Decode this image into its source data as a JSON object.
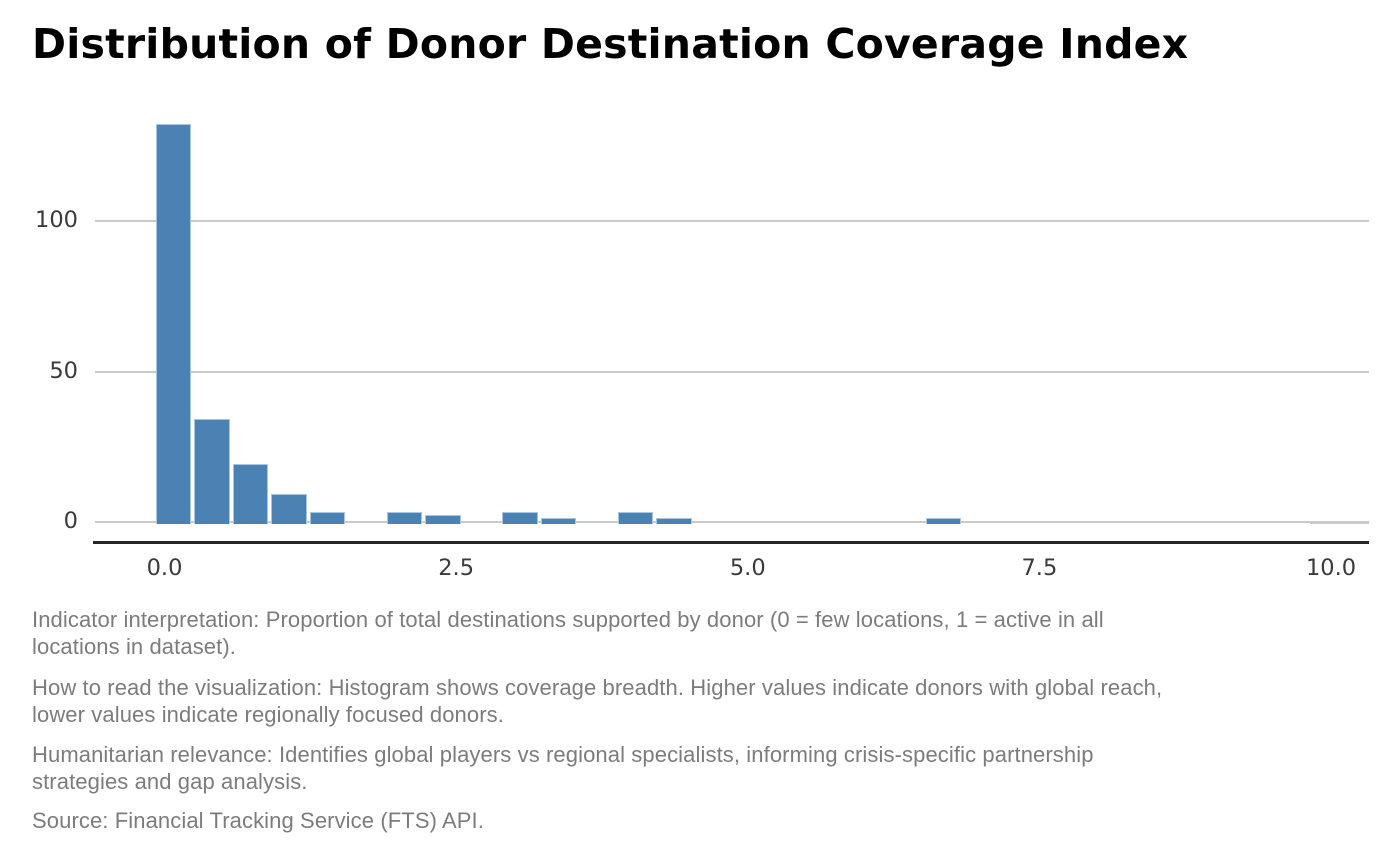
{
  "title": "Distribution of Donor Destination Coverage Index",
  "chart_data": {
    "type": "bar",
    "subtype": "histogram",
    "title": "Distribution of Donor Destination Coverage Index",
    "xlabel": "",
    "ylabel": "",
    "x_ticks": [
      "0.0",
      "2.5",
      "5.0",
      "7.5",
      "10.0"
    ],
    "x_tick_values": [
      0,
      2.5,
      5,
      7.5,
      10
    ],
    "y_ticks": [
      "0",
      "50",
      "100"
    ],
    "y_tick_values": [
      0,
      50,
      100
    ],
    "xlim": [
      -0.6,
      10.33
    ],
    "ylim": [
      0,
      138
    ],
    "grid": "horizontal",
    "legend": "none",
    "bin_width": 0.331,
    "bars": [
      {
        "left": -0.08,
        "count": 132
      },
      {
        "left": 0.25,
        "count": 34
      },
      {
        "left": 0.58,
        "count": 19
      },
      {
        "left": 0.91,
        "count": 9
      },
      {
        "left": 1.24,
        "count": 3
      },
      {
        "left": 1.9,
        "count": 3
      },
      {
        "left": 2.23,
        "count": 2
      },
      {
        "left": 2.89,
        "count": 3
      },
      {
        "left": 3.22,
        "count": 1
      },
      {
        "left": 3.88,
        "count": 3
      },
      {
        "left": 4.21,
        "count": 1
      },
      {
        "left": 6.52,
        "count": 1
      }
    ],
    "annotations": [
      {
        "type": "gray-segment",
        "x_start": 9.82,
        "x_end": 10.33,
        "y": 0
      }
    ],
    "colors": {
      "bar_fill": "#4a82b4",
      "bar_edge": "#a9c6de",
      "gridline": "#cacaca",
      "axis_line": "#262626",
      "tick_label": "#3a3a3a",
      "gray_segment": "#c9c9c9",
      "background": "#ffffff"
    }
  },
  "captions": [
    {
      "lines": [
        "Indicator interpretation: Proportion of total destinations supported by donor (0 = few locations, 1 = active in all",
        "locations in dataset)."
      ]
    },
    {
      "lines": [
        "How to read the visualization: Histogram shows coverage breadth. Higher values indicate donors with global reach,",
        "lower values indicate regionally focused donors."
      ]
    },
    {
      "lines": [
        "Humanitarian relevance: Identifies global players vs regional specialists, informing crisis-specific partnership",
        "strategies and gap analysis."
      ]
    },
    {
      "lines": [
        "Source: Financial Tracking Service (FTS) API."
      ]
    }
  ]
}
